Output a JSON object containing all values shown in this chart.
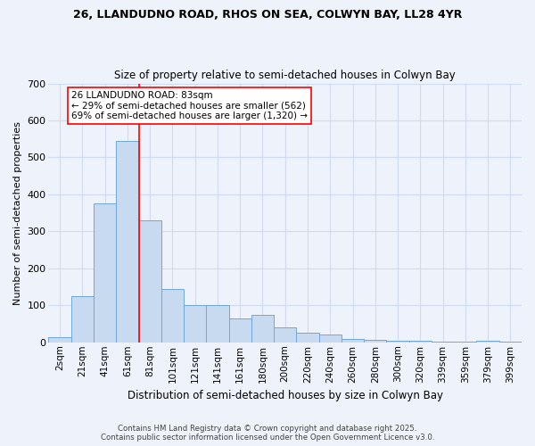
{
  "title1": "26, LLANDUDNO ROAD, RHOS ON SEA, COLWYN BAY, LL28 4YR",
  "title2": "Size of property relative to semi-detached houses in Colwyn Bay",
  "xlabel": "Distribution of semi-detached houses by size in Colwyn Bay",
  "ylabel": "Number of semi-detached properties",
  "categories": [
    "2sqm",
    "21sqm",
    "41sqm",
    "61sqm",
    "81sqm",
    "101sqm",
    "121sqm",
    "141sqm",
    "161sqm",
    "180sqm",
    "200sqm",
    "220sqm",
    "240sqm",
    "260sqm",
    "280sqm",
    "300sqm",
    "320sqm",
    "339sqm",
    "359sqm",
    "379sqm",
    "399sqm"
  ],
  "values": [
    15,
    125,
    375,
    545,
    330,
    145,
    100,
    100,
    65,
    75,
    40,
    25,
    20,
    10,
    7,
    5,
    4,
    3,
    3,
    5,
    3
  ],
  "bar_color": "#c8daf0",
  "bar_edge_color": "#6fa8d8",
  "property_line_index": 4,
  "annotation_title": "26 LLANDUDNO ROAD: 83sqm",
  "annotation_line1": "← 29% of semi-detached houses are smaller (562)",
  "annotation_line2": "69% of semi-detached houses are larger (1,320) →",
  "footer1": "Contains HM Land Registry data © Crown copyright and database right 2025.",
  "footer2": "Contains public sector information licensed under the Open Government Licence v3.0.",
  "bg_color": "#eef2fa",
  "grid_color": "#d0daf0",
  "ylim": [
    0,
    700
  ],
  "yticks": [
    0,
    100,
    200,
    300,
    400,
    500,
    600,
    700
  ]
}
